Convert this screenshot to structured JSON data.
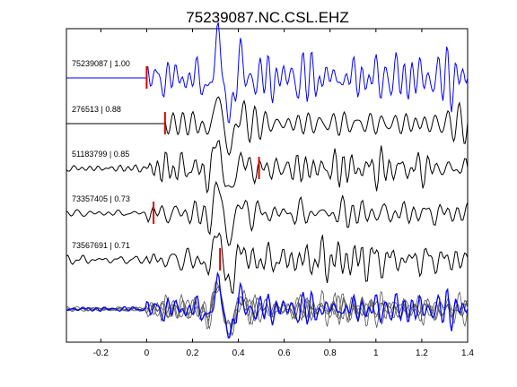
{
  "chart_data": {
    "type": "line",
    "title": "75239087.NC.CSL.EHZ",
    "xlabel": "",
    "ylabel": "",
    "xlim": [
      -0.35,
      1.4
    ],
    "xticks": [
      -0.2,
      0,
      0.2,
      0.4,
      0.6,
      0.8,
      1,
      1.2,
      1.4
    ],
    "xtick_labels": [
      "-0.2",
      "0",
      "0.2",
      "0.4",
      "0.6",
      "0.8",
      "1",
      "1.2",
      "1.4"
    ],
    "grid": false,
    "traces": [
      {
        "label": "75239087 | 1.00",
        "start": 0.0,
        "pick": 0.0,
        "color": "#0000ff",
        "amp": 28,
        "seed": 1
      },
      {
        "label": "276513 | 0.88",
        "start": 0.08,
        "pick": 0.08,
        "color": "#000000",
        "amp": 22,
        "seed": 2
      },
      {
        "label": "51183799 | 0.85",
        "start": -0.35,
        "pick": 0.49,
        "color": "#000000",
        "amp": 22,
        "seed": 3
      },
      {
        "label": "73357405 | 0.73",
        "start": -0.35,
        "pick": 0.03,
        "color": "#000000",
        "amp": 20,
        "seed": 4
      },
      {
        "label": "73567691 | 0.71",
        "start": -0.35,
        "pick": 0.32,
        "color": "#000000",
        "amp": 24,
        "seed": 5
      }
    ],
    "stack": {
      "reference_color": "#0000ff",
      "other_color": "#555555"
    }
  }
}
